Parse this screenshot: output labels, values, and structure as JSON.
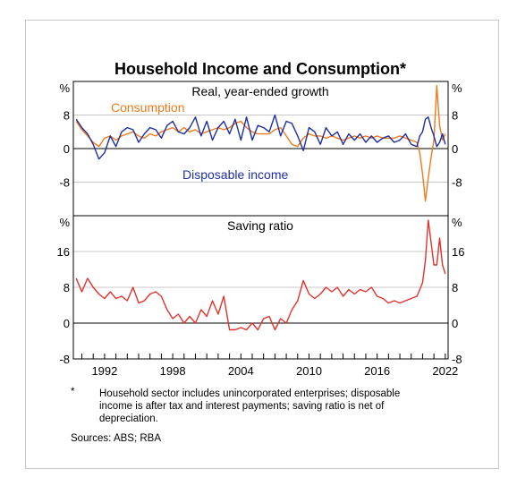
{
  "chart_data": [
    {
      "type": "line",
      "title": "Household Income and Consumption*",
      "subtitle": "Real, year-ended growth",
      "ylabel": "%",
      "ylim": [
        -16,
        16
      ],
      "yticks": [
        -8,
        0,
        8
      ],
      "xlim": [
        1989.25,
        2022.25
      ],
      "grid": true,
      "series": [
        {
          "name": "Consumption",
          "color": "#f07a1f",
          "x": [
            1989.5,
            1990,
            1990.5,
            1991,
            1991.5,
            1992,
            1992.5,
            1993,
            1993.5,
            1994,
            1994.5,
            1995,
            1995.5,
            1996,
            1996.5,
            1997,
            1997.5,
            1998,
            1998.5,
            1999,
            1999.5,
            2000,
            2000.5,
            2001,
            2001.5,
            2002,
            2002.5,
            2003,
            2003.5,
            2004,
            2004.5,
            2005,
            2005.5,
            2006,
            2006.5,
            2007,
            2007.5,
            2008,
            2008.5,
            2009,
            2009.5,
            2010,
            2010.5,
            2011,
            2011.5,
            2012,
            2012.5,
            2013,
            2013.5,
            2014,
            2014.5,
            2015,
            2015.5,
            2016,
            2016.5,
            2017,
            2017.5,
            2018,
            2018.5,
            2019,
            2019.5,
            2019.75,
            2020,
            2020.25,
            2020.5,
            2020.75,
            2021,
            2021.25,
            2021.5,
            2021.75,
            2022
          ],
          "values": [
            6.5,
            4.5,
            3,
            1.5,
            0.5,
            2.5,
            3,
            2,
            3,
            3.5,
            4,
            3,
            2.5,
            3.5,
            3,
            4,
            4.5,
            5,
            4,
            5,
            4,
            4.5,
            3.5,
            4,
            4.5,
            5,
            4.5,
            5,
            6,
            6.5,
            5,
            4,
            3.5,
            3.5,
            3.5,
            4.5,
            5,
            3,
            1,
            0.5,
            2.5,
            3.5,
            3,
            3,
            2.5,
            3,
            2.5,
            2,
            2.5,
            3,
            2.5,
            3,
            2.5,
            3,
            2.5,
            2.5,
            2.5,
            3,
            2.5,
            2,
            1.5,
            -1,
            -6,
            -12.5,
            -7,
            -2,
            2,
            15,
            5.5,
            2,
            3.5
          ]
        },
        {
          "name": "Disposable income",
          "color": "#1f2fa0",
          "x": [
            1989.5,
            1990,
            1990.5,
            1991,
            1991.5,
            1992,
            1992.5,
            1993,
            1993.5,
            1994,
            1994.5,
            1995,
            1995.5,
            1996,
            1996.5,
            1997,
            1997.5,
            1998,
            1998.5,
            1999,
            1999.5,
            2000,
            2000.5,
            2001,
            2001.5,
            2002,
            2002.5,
            2003,
            2003.5,
            2004,
            2004.5,
            2005,
            2005.5,
            2006,
            2006.5,
            2007,
            2007.5,
            2008,
            2008.5,
            2009,
            2009.5,
            2010,
            2010.5,
            2011,
            2011.5,
            2012,
            2012.5,
            2013,
            2013.5,
            2014,
            2014.5,
            2015,
            2015.5,
            2016,
            2016.5,
            2017,
            2017.5,
            2018,
            2018.5,
            2019,
            2019.5,
            2019.75,
            2020,
            2020.25,
            2020.5,
            2020.75,
            2021,
            2021.25,
            2021.5,
            2021.75,
            2022
          ],
          "values": [
            7,
            5,
            3.5,
            1,
            -2.5,
            -1,
            3,
            0.5,
            4,
            5,
            4.5,
            1.5,
            3.5,
            5,
            4.5,
            2.5,
            5.5,
            6.5,
            4,
            3.5,
            5,
            7.5,
            3,
            6.5,
            2,
            5,
            6.5,
            3.5,
            7,
            2,
            7.5,
            2,
            5.5,
            5,
            4,
            8,
            3,
            6.5,
            6,
            3,
            -0.5,
            5,
            4,
            1,
            5,
            3,
            4,
            1,
            3.5,
            2,
            3.5,
            1.5,
            3,
            1.5,
            2.5,
            3,
            1.5,
            2,
            3.5,
            1,
            0.5,
            3,
            4,
            7,
            7.5,
            5,
            3,
            0.5,
            1.5,
            3.5,
            1
          ]
        }
      ]
    },
    {
      "type": "line",
      "title": "Saving ratio",
      "ylabel": "%",
      "ylim": [
        -8,
        24
      ],
      "yticks": [
        -8,
        0,
        8,
        16
      ],
      "xlim": [
        1989.25,
        2022.25
      ],
      "xticks": [
        1992,
        1998,
        2004,
        2010,
        2016,
        2022
      ],
      "grid": true,
      "series": [
        {
          "name": "Saving ratio",
          "color": "#e0332f",
          "x": [
            1989.5,
            1990,
            1990.5,
            1991,
            1991.5,
            1992,
            1992.5,
            1993,
            1993.5,
            1994,
            1994.5,
            1995,
            1995.5,
            1996,
            1996.5,
            1997,
            1997.5,
            1998,
            1998.5,
            1999,
            1999.5,
            2000,
            2000.5,
            2001,
            2001.5,
            2002,
            2002.5,
            2003,
            2003.5,
            2004,
            2004.5,
            2005,
            2005.5,
            2006,
            2006.5,
            2007,
            2007.5,
            2008,
            2008.5,
            2009,
            2009.5,
            2010,
            2010.5,
            2011,
            2011.5,
            2012,
            2012.5,
            2013,
            2013.5,
            2014,
            2014.5,
            2015,
            2015.5,
            2016,
            2016.5,
            2017,
            2017.5,
            2018,
            2018.5,
            2019,
            2019.5,
            2019.75,
            2020,
            2020.25,
            2020.5,
            2020.75,
            2021,
            2021.25,
            2021.5,
            2021.75,
            2022
          ],
          "values": [
            10,
            7,
            10,
            8,
            6.5,
            5.5,
            7,
            5.5,
            6,
            5,
            8,
            4.5,
            5,
            6.5,
            7,
            6,
            3,
            1,
            2,
            0,
            1.5,
            0,
            3,
            1.5,
            5,
            2,
            6,
            -1.5,
            -1.5,
            -1,
            -1.5,
            0,
            -1.5,
            1,
            1.5,
            -1.5,
            1,
            0,
            3,
            5,
            9.5,
            6.5,
            5.5,
            6.5,
            8,
            7,
            8,
            6,
            7.5,
            6.5,
            7.5,
            7,
            8,
            6,
            5.5,
            4.5,
            5,
            4.5,
            5,
            5.5,
            6,
            7.5,
            9,
            14,
            23,
            18,
            13,
            13,
            19,
            13,
            11
          ]
        }
      ]
    }
  ],
  "y_unit": "%",
  "footnote": {
    "mark": "*",
    "lines": [
      "Household sector includes unincorporated enterprises; disposable",
      "income is after tax and interest payments; saving ratio is net of",
      "depreciation."
    ]
  },
  "sources": "Sources: ABS; RBA"
}
